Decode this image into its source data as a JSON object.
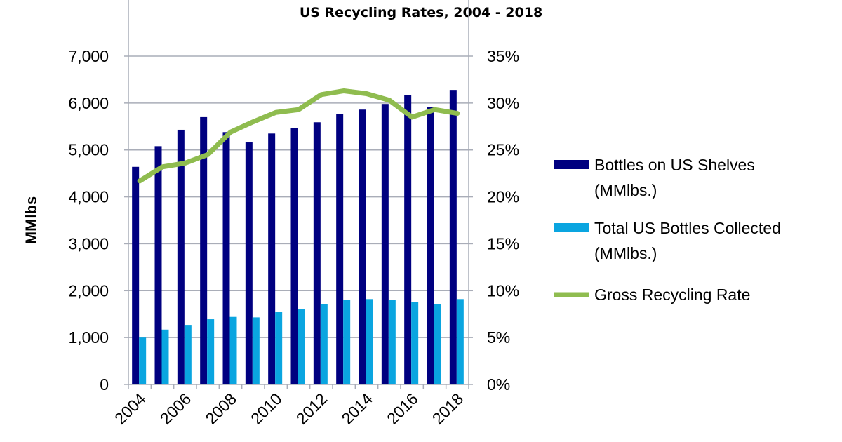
{
  "chart_data": {
    "type": "bar",
    "title": "US Recycling Rates, 2004 - 2018",
    "ylabel": "MMlbs",
    "y2label": "",
    "xlabel": "",
    "ylim": [
      0,
      7000
    ],
    "y2lim": [
      0,
      35
    ],
    "grid": true,
    "legend_position": "right",
    "categories": [
      2004,
      2005,
      2006,
      2007,
      2008,
      2009,
      2010,
      2011,
      2012,
      2013,
      2014,
      2015,
      2016,
      2017,
      2018
    ],
    "x_tick_labels": [
      "2004",
      "2006",
      "2008",
      "2010",
      "2012",
      "2014",
      "2016",
      "2018"
    ],
    "y_tick_labels": [
      "0",
      "1,000",
      "2,000",
      "3,000",
      "4,000",
      "5,000",
      "6,000",
      "7,000"
    ],
    "y2_tick_labels": [
      "0%",
      "5%",
      "10%",
      "15%",
      "20%",
      "25%",
      "30%",
      "35%"
    ],
    "series": [
      {
        "name": "Bottles on US Shelves (MMlbs.)",
        "legend_lines": [
          "Bottles on US Shelves",
          "(MMlbs.)"
        ],
        "type": "bar",
        "axis": "left",
        "color": "#000080",
        "values": [
          4640,
          5080,
          5430,
          5700,
          5380,
          5160,
          5350,
          5470,
          5590,
          5770,
          5860,
          5980,
          6170,
          5920,
          6280
        ]
      },
      {
        "name": "Total US Bottles Collected (MMlbs.)",
        "legend_lines": [
          "Total US Bottles Collected",
          "(MMlbs.)"
        ],
        "type": "bar",
        "axis": "left",
        "color": "#0aa5e0",
        "values": [
          1000,
          1170,
          1270,
          1390,
          1440,
          1430,
          1550,
          1600,
          1720,
          1800,
          1820,
          1800,
          1750,
          1720,
          1820
        ]
      },
      {
        "name": "Gross Recycling Rate",
        "legend_lines": [
          "Gross Recycling Rate"
        ],
        "type": "line",
        "axis": "right",
        "unit": "%",
        "color": "#8fbc4f",
        "values": [
          21.7,
          23.2,
          23.6,
          24.5,
          26.9,
          28.0,
          29.0,
          29.3,
          30.9,
          31.3,
          31.0,
          30.3,
          28.5,
          29.3,
          28.9
        ]
      }
    ]
  }
}
